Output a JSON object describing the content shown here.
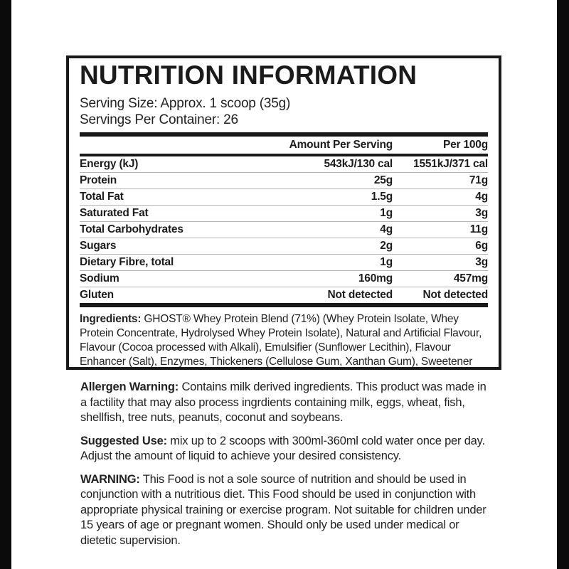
{
  "colors": {
    "background": "#ffffff",
    "edge_bars": "#0b0b0b",
    "text": "#1e1e1e",
    "panel_border": "#191919",
    "row_divider": "#b5b5b5"
  },
  "panel": {
    "title": "NUTRITION INFORMATION",
    "serving_size": "Serving Size: Approx. 1 scoop (35g)",
    "servings_per_container": "Servings Per Container: 26",
    "table": {
      "col_per_serving": "Amount Per Serving",
      "col_per_100g": "Per 100g",
      "rows": [
        {
          "label": "Energy (kJ)",
          "per_serving": "543kJ/130 cal",
          "per_100g": "1551kJ/371 cal"
        },
        {
          "label": "Protein",
          "per_serving": "25g",
          "per_100g": "71g"
        },
        {
          "label": "Total Fat",
          "per_serving": "1.5g",
          "per_100g": "4g"
        },
        {
          "label": "Saturated Fat",
          "per_serving": "1g",
          "per_100g": "3g"
        },
        {
          "label": "Total Carbohydrates",
          "per_serving": "4g",
          "per_100g": "11g"
        },
        {
          "label": "Sugars",
          "per_serving": "2g",
          "per_100g": "6g"
        },
        {
          "label": "Dietary Fibre, total",
          "per_serving": "1g",
          "per_100g": "3g"
        },
        {
          "label": "Sodium",
          "per_serving": "160mg",
          "per_100g": "457mg"
        },
        {
          "label": "Gluten",
          "per_serving": "Not detected",
          "per_100g": "Not detected"
        }
      ]
    },
    "ingredients": {
      "lead": "Ingredients:",
      "text": " GHOST® Whey Protein Blend (71%) (Whey Protein Isolate, Whey Protein Concentrate, Hydrolysed Whey Protein Isolate), Natural and Artificial Flavour, Flavour (Cocoa processed with Alkali), Emulsifier (Sunflower Lecithin), Flavour Enhancer (Salt), Enzymes, Thickeners (Cellulose Gum, Xanthan Gum), Sweetener (Sucralose)."
    }
  },
  "notes": [
    {
      "lead": "Allergen Warning:",
      "text": " Contains milk derived ingredients. This product was made in a factility that may also process ingrdients containing milk, eggs, wheat, fish, shellfish, tree nuts, peanuts, coconut and soybeans."
    },
    {
      "lead": "Suggested Use:",
      "text": " mix up to 2 scoops with 300ml-360ml cold water once per day. Adjust the amount of liquid to achieve your desired consistency."
    },
    {
      "lead": "WARNING:",
      "text": " This Food is not a sole source of nutrition and should be used in conjunction with a nutritious diet. This Food should be used in conjunction with appropriate physical training or exercise program. Not suitable for children under 15 years of age or pregnant women. Should only be used under medical or dietetic supervision."
    }
  ]
}
